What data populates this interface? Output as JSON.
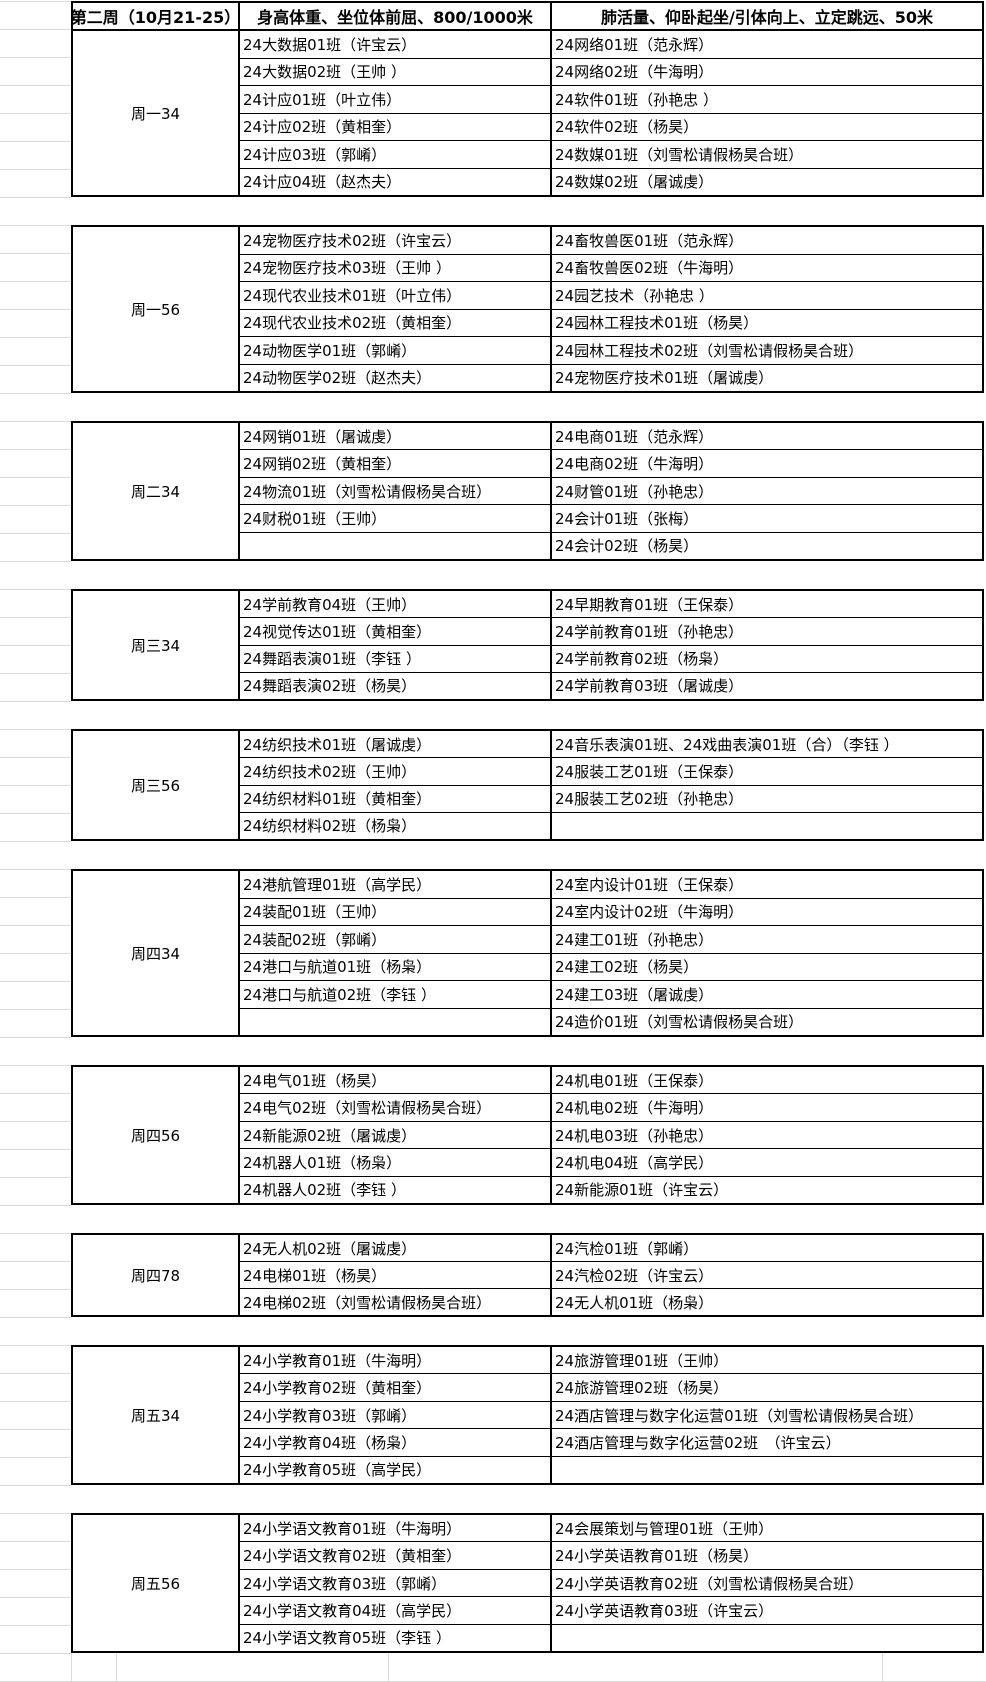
{
  "header": {
    "col1": "第二周（10月21-25）",
    "col2": "身高体重、坐位体前屈、800/1000米",
    "col3": "肺活量、仰卧起坐/引体向上、立定跳远、50米"
  },
  "sections": [
    {
      "label": "周一34",
      "col2": [
        "24大数据01班（许宝云）",
        "24大数据02班（王帅 ）",
        "24计应01班（叶立伟）",
        "24计应02班（黄相奎）",
        "24计应03班（郭崤）",
        "24计应04班（赵杰夫）"
      ],
      "col3": [
        "24网络01班（范永辉）",
        "24网络02班（牛海明）",
        "24软件01班（孙艳忠 ）",
        "24软件02班（杨昊）",
        "24数媒01班（刘雪松请假杨昊合班）",
        "24数媒02班（屠诚虔）"
      ]
    },
    {
      "label": "周一56",
      "col2": [
        "24宠物医疗技术02班（许宝云）",
        "24宠物医疗技术03班（王帅 ）",
        "24现代农业技术01班（叶立伟）",
        "24现代农业技术02班（黄相奎）",
        "24动物医学01班（郭崤）",
        "24动物医学02班（赵杰夫）"
      ],
      "col3": [
        "24畜牧兽医01班（范永辉）",
        "24畜牧兽医02班（牛海明）",
        "24园艺技术（孙艳忠 ）",
        "24园林工程技术01班（杨昊）",
        "24园林工程技术02班（刘雪松请假杨昊合班）",
        "24宠物医疗技术01班（屠诚虔）"
      ]
    },
    {
      "label": "周二34",
      "col2": [
        "24网销01班（屠诚虔）",
        "24网销02班（黄相奎）",
        "24物流01班（刘雪松请假杨昊合班）",
        "24财税01班（王帅）",
        ""
      ],
      "col3": [
        "24电商01班（范永辉）",
        "24电商02班（牛海明）",
        "24财管01班（孙艳忠）",
        "24会计01班（张梅）",
        "24会计02班（杨昊）"
      ]
    },
    {
      "label": "周三34",
      "col2": [
        "24学前教育04班（王帅）",
        "24视觉传达01班（黄相奎）",
        "24舞蹈表演01班（李钰 ）",
        "24舞蹈表演02班（杨昊）"
      ],
      "col3": [
        "24早期教育01班（王保泰）",
        "24学前教育01班（孙艳忠）",
        "24学前教育02班（杨枭）",
        "24学前教育03班（屠诚虔）"
      ]
    },
    {
      "label": "周三56",
      "col2": [
        "24纺织技术01班（屠诚虔）",
        "24纺织技术02班（王帅）",
        "24纺织材料01班（黄相奎）",
        "24纺织材料02班（杨枭）"
      ],
      "col3": [
        "24音乐表演01班、24戏曲表演01班（合）（李钰 ）",
        "24服装工艺01班（王保泰）",
        "24服装工艺02班（孙艳忠）",
        ""
      ]
    },
    {
      "label": "周四34",
      "col2": [
        "24港航管理01班（高学民）",
        "24装配01班（王帅）",
        "24装配02班（郭崤）",
        "24港口与航道01班（杨枭）",
        "24港口与航道02班（李钰 ）",
        ""
      ],
      "col3": [
        "24室内设计01班（王保泰）",
        "24室内设计02班（牛海明）",
        "24建工01班（孙艳忠）",
        "24建工02班（杨昊）",
        "24建工03班（屠诚虔）",
        "24造价01班（刘雪松请假杨昊合班）"
      ]
    },
    {
      "label": "周四56",
      "col2": [
        "24电气01班（杨昊）",
        "24电气02班（刘雪松请假杨昊合班）",
        "24新能源02班（屠诚虔）",
        "24机器人01班（杨枭）",
        "24机器人02班（李钰 ）"
      ],
      "col3": [
        "24机电01班（王保泰）",
        "24机电02班（牛海明）",
        "24机电03班（孙艳忠）",
        "24机电04班（高学民）",
        "24新能源01班（许宝云）"
      ]
    },
    {
      "label": "周四78",
      "col2": [
        "24无人机02班（屠诚虔）",
        "24电梯01班（杨昊）",
        "24电梯02班（刘雪松请假杨昊合班）"
      ],
      "col3": [
        "24汽检01班（郭崤）",
        "24汽检02班（许宝云）",
        "24无人机01班（杨枭）"
      ]
    },
    {
      "label": "周五34",
      "col2": [
        "24小学教育01班（牛海明）",
        "24小学教育02班（黄相奎）",
        "24小学教育03班（郭崤）",
        "24小学教育04班（杨枭）",
        "24小学教育05班（高学民）"
      ],
      "col3": [
        "24旅游管理01班（王帅）",
        "24旅游管理02班（杨昊）",
        "24酒店管理与数字化运营01班（刘雪松请假杨昊合班）",
        "24酒店管理与数字化运营02班　（许宝云）",
        ""
      ]
    },
    {
      "label": "周五56",
      "col2": [
        "24小学语文教育01班（牛海明）",
        "24小学语文教育02班（黄相奎）",
        "24小学语文教育03班（郭崤）",
        "24小学语文教育04班（高学民）",
        "24小学语文教育05班（李钰 ）"
      ],
      "col3": [
        "24会展策划与管理01班（王帅）",
        "24小学英语教育01班（杨昊）",
        "24小学英语教育02班（刘雪松请假杨昊合班）",
        "24小学英语教育03班（许宝云）",
        ""
      ]
    }
  ],
  "colors": {
    "table_border": "#000000",
    "gridline": "#d9d9d9",
    "background": "#ffffff",
    "text": "#000000"
  }
}
